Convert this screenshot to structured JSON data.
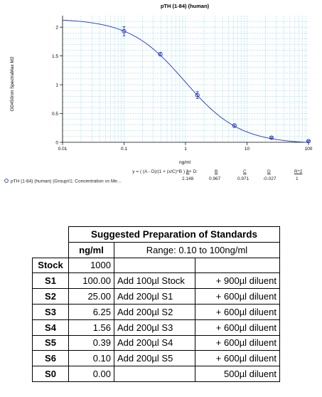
{
  "chart_data": {
    "type": "scatter",
    "title": "pTH (1-84) (human)",
    "xlabel": "ng/ml",
    "ylabel": "OD450nm SpectraMax M2",
    "xscale": "log",
    "xlim": [
      0.01,
      100
    ],
    "ylim": [
      0,
      2.2
    ],
    "x_ticks": [
      "0.01",
      "0.1",
      "1",
      "10",
      "100"
    ],
    "y_ticks": [
      "0",
      "0.5",
      "1",
      "1.5",
      "2"
    ],
    "grid": true,
    "series": [
      {
        "name": "pTH (1-84) (human) (Group#1: Concentration vs Me...",
        "color": "#1f35c4",
        "x": [
          0.1,
          0.39,
          1.56,
          6.25,
          25,
          100
        ],
        "y": [
          1.93,
          1.53,
          0.82,
          0.29,
          0.08,
          0.02
        ],
        "err": [
          0.08,
          0.03,
          0.06,
          0.03,
          0.01,
          0.01
        ]
      }
    ],
    "fit": {
      "equation": "y = ( (A - D)/(1 + (x/C)^B ) ) + D:",
      "headers": [
        "A",
        "B",
        "C",
        "D",
        "R^2"
      ],
      "values": [
        "2.148",
        "0.967",
        "0.971",
        "-0.027",
        "1"
      ]
    }
  },
  "standards": {
    "title": "Suggested Preparation of Standards",
    "unit_header": "ng/ml",
    "range_header": "Range: 0.10 to 100ng/ml",
    "rows": [
      {
        "label": "Stock",
        "conc": "1000",
        "action": "",
        "diluent": ""
      },
      {
        "label": "S1",
        "conc": "100.00",
        "action": "Add 100µl Stock",
        "diluent": "+ 900µl diluent"
      },
      {
        "label": "S2",
        "conc": "25.00",
        "action": "Add 200µl S1",
        "diluent": "+ 600µl diluent"
      },
      {
        "label": "S3",
        "conc": "6.25",
        "action": "Add 200µl S2",
        "diluent": "+ 600µl diluent"
      },
      {
        "label": "S4",
        "conc": "1.56",
        "action": "Add 200µl S3",
        "diluent": "+ 600µl diluent"
      },
      {
        "label": "S5",
        "conc": "0.39",
        "action": "Add 200µl S4",
        "diluent": "+ 600µl diluent"
      },
      {
        "label": "S6",
        "conc": "0.10",
        "action": "Add 200µl S5",
        "diluent": "+ 600µl diluent"
      },
      {
        "label": "S0",
        "conc": "0.00",
        "action": "",
        "diluent": "500µl diluent"
      }
    ]
  }
}
